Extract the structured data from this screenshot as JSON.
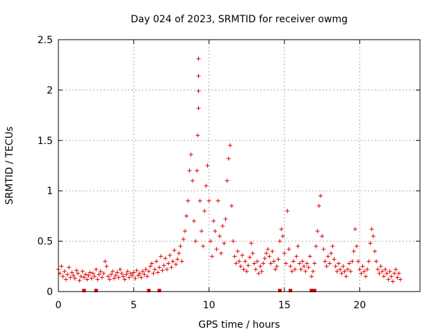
{
  "chart_data": {
    "type": "scatter",
    "title": "Day 024 of 2023, SRMTID for receiver owmg",
    "xlabel": "GPS time / hours",
    "ylabel": "SRMTID / TECUs",
    "xlim": [
      0,
      24
    ],
    "ylim": [
      0,
      2.5
    ],
    "xticks": [
      0,
      5,
      10,
      15,
      20
    ],
    "xtick_labels": [
      "0",
      "5",
      "10",
      "15",
      "20"
    ],
    "yticks": [
      0,
      0.5,
      1,
      1.5,
      2,
      2.5
    ],
    "ytick_labels": [
      "0",
      "0.5",
      "1",
      "1.5",
      "2",
      "2.5"
    ],
    "grid": true,
    "series": [
      {
        "name": "SRMTID",
        "color": "#e00000",
        "marker": "+",
        "points": [
          [
            0.0,
            0.22
          ],
          [
            0.1,
            0.18
          ],
          [
            0.2,
            0.25
          ],
          [
            0.3,
            0.15
          ],
          [
            0.4,
            0.2
          ],
          [
            0.5,
            0.12
          ],
          [
            0.6,
            0.17
          ],
          [
            0.7,
            0.24
          ],
          [
            0.8,
            0.14
          ],
          [
            0.9,
            0.19
          ],
          [
            1.0,
            0.16
          ],
          [
            1.1,
            0.13
          ],
          [
            1.2,
            0.21
          ],
          [
            1.3,
            0.18
          ],
          [
            1.4,
            0.11
          ],
          [
            1.5,
            0.15
          ],
          [
            1.6,
            0.2
          ],
          [
            1.7,
            0.14
          ],
          [
            1.8,
            0.17
          ],
          [
            1.9,
            0.12
          ],
          [
            2.0,
            0.16
          ],
          [
            2.1,
            0.19
          ],
          [
            2.2,
            0.13
          ],
          [
            2.3,
            0.18
          ],
          [
            2.4,
            0.15
          ],
          [
            2.5,
            0.22
          ],
          [
            2.6,
            0.12
          ],
          [
            2.7,
            0.17
          ],
          [
            2.8,
            0.2
          ],
          [
            2.9,
            0.14
          ],
          [
            3.0,
            0.18
          ],
          [
            3.1,
            0.3
          ],
          [
            3.2,
            0.25
          ],
          [
            3.3,
            0.15
          ],
          [
            3.4,
            0.12
          ],
          [
            3.5,
            0.17
          ],
          [
            3.6,
            0.2
          ],
          [
            3.7,
            0.13
          ],
          [
            3.8,
            0.16
          ],
          [
            3.9,
            0.19
          ],
          [
            4.0,
            0.14
          ],
          [
            4.1,
            0.22
          ],
          [
            4.2,
            0.18
          ],
          [
            4.3,
            0.15
          ],
          [
            4.4,
            0.12
          ],
          [
            4.5,
            0.17
          ],
          [
            4.6,
            0.2
          ],
          [
            4.7,
            0.14
          ],
          [
            4.8,
            0.18
          ],
          [
            4.9,
            0.16
          ],
          [
            5.0,
            0.19
          ],
          [
            5.1,
            0.13
          ],
          [
            5.2,
            0.21
          ],
          [
            5.3,
            0.16
          ],
          [
            5.4,
            0.18
          ],
          [
            5.5,
            0.14
          ],
          [
            5.6,
            0.2
          ],
          [
            5.7,
            0.17
          ],
          [
            5.8,
            0.22
          ],
          [
            5.9,
            0.15
          ],
          [
            6.0,
            0.2
          ],
          [
            6.1,
            0.25
          ],
          [
            6.2,
            0.28
          ],
          [
            6.3,
            0.18
          ],
          [
            6.4,
            0.22
          ],
          [
            6.5,
            0.3
          ],
          [
            6.6,
            0.19
          ],
          [
            6.7,
            0.24
          ],
          [
            6.8,
            0.35
          ],
          [
            6.9,
            0.21
          ],
          [
            7.0,
            0.26
          ],
          [
            7.1,
            0.33
          ],
          [
            7.2,
            0.22
          ],
          [
            7.3,
            0.28
          ],
          [
            7.4,
            0.36
          ],
          [
            7.5,
            0.24
          ],
          [
            7.6,
            0.3
          ],
          [
            7.7,
            0.41
          ],
          [
            7.8,
            0.27
          ],
          [
            7.9,
            0.32
          ],
          [
            8.0,
            0.38
          ],
          [
            8.1,
            0.45
          ],
          [
            8.2,
            0.3
          ],
          [
            8.3,
            0.52
          ],
          [
            8.4,
            0.6
          ],
          [
            8.5,
            0.75
          ],
          [
            8.6,
            0.9
          ],
          [
            8.7,
            1.2
          ],
          [
            8.8,
            1.36
          ],
          [
            8.9,
            1.1
          ],
          [
            9.0,
            0.7
          ],
          [
            9.1,
            0.5
          ],
          [
            9.2,
            1.2
          ],
          [
            9.25,
            1.55
          ],
          [
            9.3,
            1.82
          ],
          [
            9.3,
            1.99
          ],
          [
            9.3,
            2.14
          ],
          [
            9.3,
            2.31
          ],
          [
            9.4,
            0.9
          ],
          [
            9.5,
            0.6
          ],
          [
            9.6,
            0.45
          ],
          [
            9.7,
            0.8
          ],
          [
            9.8,
            1.05
          ],
          [
            9.9,
            1.25
          ],
          [
            10.0,
            0.9
          ],
          [
            10.1,
            0.5
          ],
          [
            10.2,
            0.35
          ],
          [
            10.3,
            0.7
          ],
          [
            10.4,
            0.6
          ],
          [
            10.5,
            0.42
          ],
          [
            10.6,
            0.9
          ],
          [
            10.7,
            0.55
          ],
          [
            10.8,
            0.38
          ],
          [
            10.9,
            0.65
          ],
          [
            11.0,
            0.48
          ],
          [
            11.1,
            0.72
          ],
          [
            11.2,
            1.1
          ],
          [
            11.3,
            1.32
          ],
          [
            11.4,
            1.45
          ],
          [
            11.5,
            0.85
          ],
          [
            11.6,
            0.5
          ],
          [
            11.7,
            0.35
          ],
          [
            11.8,
            0.28
          ],
          [
            11.9,
            0.4
          ],
          [
            12.0,
            0.3
          ],
          [
            12.1,
            0.25
          ],
          [
            12.2,
            0.36
          ],
          [
            12.3,
            0.22
          ],
          [
            12.4,
            0.3
          ],
          [
            12.5,
            0.2
          ],
          [
            12.6,
            0.26
          ],
          [
            12.7,
            0.34
          ],
          [
            12.8,
            0.48
          ],
          [
            12.9,
            0.38
          ],
          [
            13.0,
            0.28
          ],
          [
            13.1,
            0.22
          ],
          [
            13.2,
            0.3
          ],
          [
            13.3,
            0.18
          ],
          [
            13.4,
            0.25
          ],
          [
            13.5,
            0.2
          ],
          [
            13.6,
            0.28
          ],
          [
            13.7,
            0.33
          ],
          [
            13.8,
            0.38
          ],
          [
            13.9,
            0.42
          ],
          [
            14.0,
            0.35
          ],
          [
            14.1,
            0.28
          ],
          [
            14.2,
            0.4
          ],
          [
            14.3,
            0.3
          ],
          [
            14.4,
            0.22
          ],
          [
            14.5,
            0.25
          ],
          [
            14.6,
            0.32
          ],
          [
            14.7,
            0.5
          ],
          [
            14.8,
            0.62
          ],
          [
            14.9,
            0.55
          ],
          [
            15.0,
            0.38
          ],
          [
            15.1,
            0.28
          ],
          [
            15.2,
            0.8
          ],
          [
            15.3,
            0.42
          ],
          [
            15.4,
            0.25
          ],
          [
            15.5,
            0.2
          ],
          [
            15.6,
            0.3
          ],
          [
            15.7,
            0.22
          ],
          [
            15.8,
            0.35
          ],
          [
            15.9,
            0.45
          ],
          [
            16.0,
            0.28
          ],
          [
            16.1,
            0.22
          ],
          [
            16.2,
            0.3
          ],
          [
            16.3,
            0.25
          ],
          [
            16.4,
            0.2
          ],
          [
            16.5,
            0.28
          ],
          [
            16.6,
            0.24
          ],
          [
            16.7,
            0.35
          ],
          [
            16.8,
            0.15
          ],
          [
            16.9,
            0.2
          ],
          [
            17.0,
            0.28
          ],
          [
            17.1,
            0.45
          ],
          [
            17.2,
            0.6
          ],
          [
            17.3,
            0.85
          ],
          [
            17.4,
            0.95
          ],
          [
            17.5,
            0.55
          ],
          [
            17.6,
            0.42
          ],
          [
            17.7,
            0.3
          ],
          [
            17.8,
            0.25
          ],
          [
            17.9,
            0.35
          ],
          [
            18.0,
            0.28
          ],
          [
            18.1,
            0.38
          ],
          [
            18.2,
            0.45
          ],
          [
            18.3,
            0.32
          ],
          [
            18.4,
            0.25
          ],
          [
            18.5,
            0.2
          ],
          [
            18.6,
            0.28
          ],
          [
            18.7,
            0.22
          ],
          [
            18.8,
            0.18
          ],
          [
            18.9,
            0.25
          ],
          [
            19.0,
            0.2
          ],
          [
            19.1,
            0.15
          ],
          [
            19.2,
            0.22
          ],
          [
            19.3,
            0.28
          ],
          [
            19.4,
            0.2
          ],
          [
            19.5,
            0.3
          ],
          [
            19.6,
            0.4
          ],
          [
            19.7,
            0.62
          ],
          [
            19.8,
            0.45
          ],
          [
            19.9,
            0.3
          ],
          [
            20.0,
            0.22
          ],
          [
            20.1,
            0.18
          ],
          [
            20.2,
            0.25
          ],
          [
            20.3,
            0.2
          ],
          [
            20.4,
            0.15
          ],
          [
            20.5,
            0.22
          ],
          [
            20.6,
            0.3
          ],
          [
            20.7,
            0.48
          ],
          [
            20.8,
            0.62
          ],
          [
            20.9,
            0.55
          ],
          [
            21.0,
            0.4
          ],
          [
            21.1,
            0.3
          ],
          [
            21.2,
            0.22
          ],
          [
            21.3,
            0.18
          ],
          [
            21.4,
            0.25
          ],
          [
            21.5,
            0.2
          ],
          [
            21.6,
            0.15
          ],
          [
            21.7,
            0.22
          ],
          [
            21.8,
            0.18
          ],
          [
            21.9,
            0.12
          ],
          [
            22.0,
            0.2
          ],
          [
            22.1,
            0.15
          ],
          [
            22.2,
            0.1
          ],
          [
            22.3,
            0.18
          ],
          [
            22.4,
            0.22
          ],
          [
            22.5,
            0.14
          ],
          [
            22.6,
            0.18
          ],
          [
            22.7,
            0.12
          ]
        ]
      }
    ],
    "baseline_markers": [
      1.7,
      2.5,
      6.0,
      6.7,
      14.7,
      15.4,
      16.8,
      17.0
    ]
  }
}
